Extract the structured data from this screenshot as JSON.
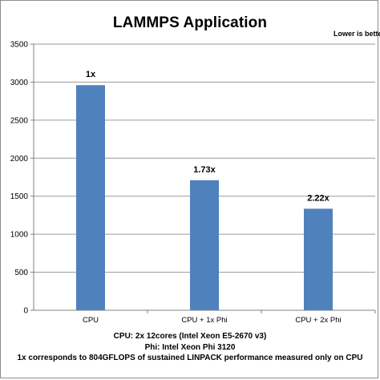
{
  "chart_data": {
    "type": "bar",
    "title": "LAMMPS Application",
    "annotation": "Lower is better",
    "categories": [
      "CPU",
      "CPU + 1x Phi",
      "CPU + 2x Phi"
    ],
    "values": [
      2960,
      1710,
      1335
    ],
    "data_labels": [
      "1x",
      "1.73x",
      "2.22x"
    ],
    "ylim": [
      0,
      3500
    ],
    "yticks": [
      0,
      500,
      1000,
      1500,
      2000,
      2500,
      3000,
      3500
    ],
    "grid": true,
    "bar_color": "#4f81bd",
    "grid_color": "#9a9a9a",
    "footnotes": [
      "CPU: 2x 12cores (Intel Xeon E5-2670 v3)",
      "Phi: Intel Xeon Phi 3120",
      "1x corresponds to 804GFLOPS of sustained LINPACK performance measured only on CPU"
    ]
  }
}
